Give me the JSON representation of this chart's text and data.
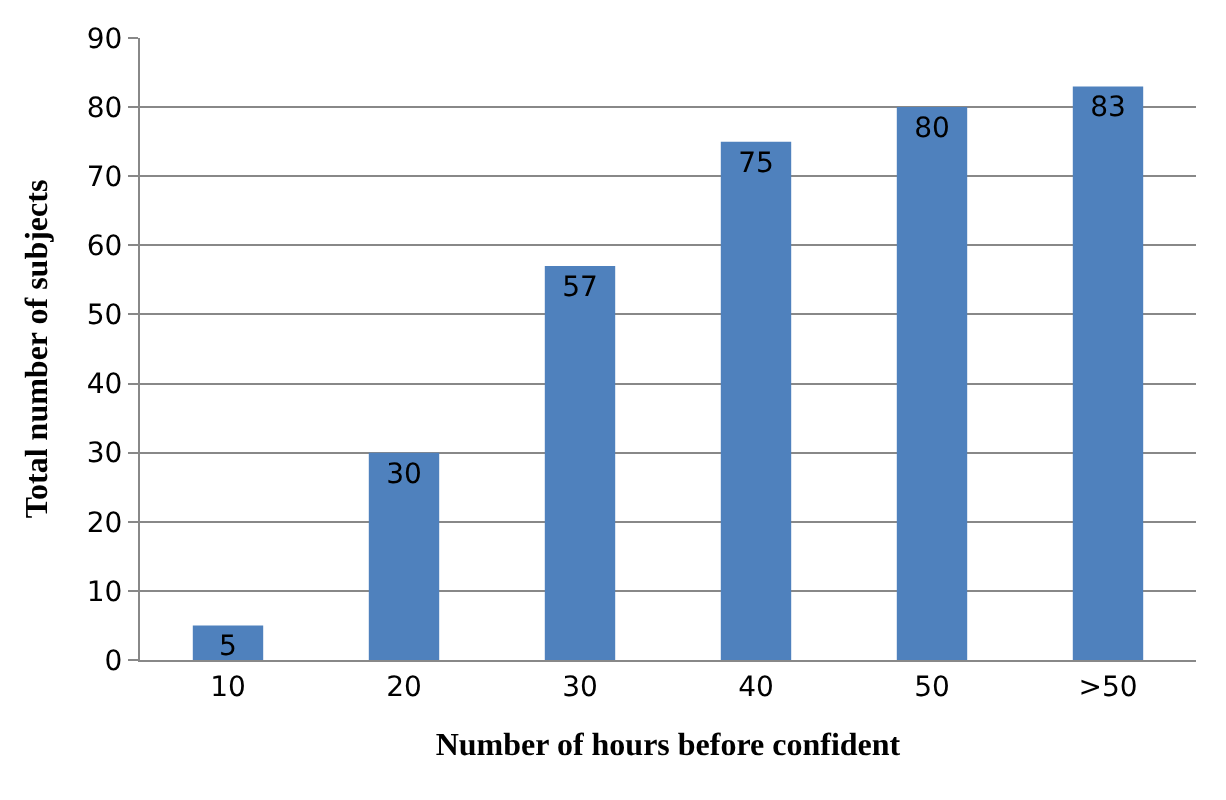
{
  "chart_data": {
    "type": "bar",
    "xlabel": "Number of hours before confident",
    "ylabel": "Total number of subjects",
    "categories": [
      "10",
      "20",
      "30",
      "40",
      "50",
      ">50"
    ],
    "values": [
      5,
      30,
      57,
      75,
      80,
      83
    ],
    "color": "#4f81bd",
    "ylim": [
      0,
      90
    ],
    "yticks": [
      0,
      10,
      20,
      30,
      40,
      50,
      60,
      70,
      80,
      90
    ],
    "grid": "y",
    "data_labels": true
  }
}
